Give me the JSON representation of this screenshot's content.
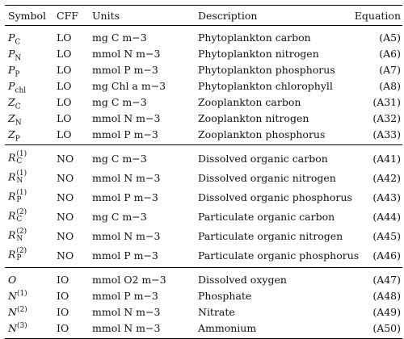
{
  "headers": {
    "symbol": "Symbol",
    "cff": "CFF",
    "units": "Units",
    "description": "Description",
    "equation": "Equation"
  },
  "groups": [
    {
      "rows": [
        {
          "sym_base": "P",
          "sym_sub": "C",
          "sym_sup": "",
          "cff": "LO",
          "units": "mg C m−3",
          "description": "Phytoplankton carbon",
          "equation": "(A5)"
        },
        {
          "sym_base": "P",
          "sym_sub": "N",
          "sym_sup": "",
          "cff": "LO",
          "units": "mmol N m−3",
          "description": "Phytoplankton nitrogen",
          "equation": "(A6)"
        },
        {
          "sym_base": "P",
          "sym_sub": "P",
          "sym_sup": "",
          "cff": "LO",
          "units": "mmol P m−3",
          "description": "Phytoplankton phosphorus",
          "equation": "(A7)"
        },
        {
          "sym_base": "P",
          "sym_sub": "chl",
          "sym_sup": "",
          "cff": "LO",
          "units": "mg Chl a m−3",
          "description": "Phytoplankton chlorophyll",
          "equation": "(A8)"
        },
        {
          "sym_base": "Z",
          "sym_sub": "C",
          "sym_sup": "",
          "cff": "LO",
          "units": "mg C m−3",
          "description": "Zooplankton carbon",
          "equation": "(A31)"
        },
        {
          "sym_base": "Z",
          "sym_sub": "N",
          "sym_sup": "",
          "cff": "LO",
          "units": "mmol N m−3",
          "description": "Zooplankton nitrogen",
          "equation": "(A32)"
        },
        {
          "sym_base": "Z",
          "sym_sub": "P",
          "sym_sup": "",
          "cff": "LO",
          "units": "mmol P m−3",
          "description": "Zooplankton phosphorus",
          "equation": "(A33)"
        }
      ]
    },
    {
      "rows": [
        {
          "sym_base": "R",
          "sym_sub": "C",
          "sym_sup": "(1)",
          "cff": "NO",
          "units": "mg C m−3",
          "description": "Dissolved organic carbon",
          "equation": "(A41)"
        },
        {
          "sym_base": "R",
          "sym_sub": "N",
          "sym_sup": "(1)",
          "cff": "NO",
          "units": "mmol N m−3",
          "description": "Dissolved organic nitrogen",
          "equation": "(A42)"
        },
        {
          "sym_base": "R",
          "sym_sub": "P",
          "sym_sup": "(1)",
          "cff": "NO",
          "units": "mmol P m−3",
          "description": "Dissolved organic phosphorus",
          "equation": "(A43)"
        },
        {
          "sym_base": "R",
          "sym_sub": "C",
          "sym_sup": "(2)",
          "cff": "NO",
          "units": "mg C m−3",
          "description": "Particulate organic carbon",
          "equation": "(A44)"
        },
        {
          "sym_base": "R",
          "sym_sub": "N",
          "sym_sup": "(2)",
          "cff": "NO",
          "units": "mmol N m−3",
          "description": "Particulate organic nitrogen",
          "equation": "(A45)"
        },
        {
          "sym_base": "R",
          "sym_sub": "P",
          "sym_sup": "(2)",
          "cff": "NO",
          "units": "mmol P m−3",
          "description": "Particulate organic phosphorus",
          "equation": "(A46)"
        }
      ]
    },
    {
      "rows": [
        {
          "sym_base": "O",
          "sym_sub": "",
          "sym_sup": "",
          "cff": "IO",
          "units": "mmol O2 m−3",
          "description": "Dissolved oxygen",
          "equation": "(A47)"
        },
        {
          "sym_base": "N",
          "sym_sub": "",
          "sym_sup": "(1)",
          "cff": "IO",
          "units": "mmol P m−3",
          "description": "Phosphate",
          "equation": "(A48)"
        },
        {
          "sym_base": "N",
          "sym_sub": "",
          "sym_sup": "(2)",
          "cff": "IO",
          "units": "mmol N m−3",
          "description": "Nitrate",
          "equation": "(A49)"
        },
        {
          "sym_base": "N",
          "sym_sub": "",
          "sym_sup": "(3)",
          "cff": "IO",
          "units": "mmol N m−3",
          "description": "Ammonium",
          "equation": "(A50)"
        }
      ]
    }
  ]
}
